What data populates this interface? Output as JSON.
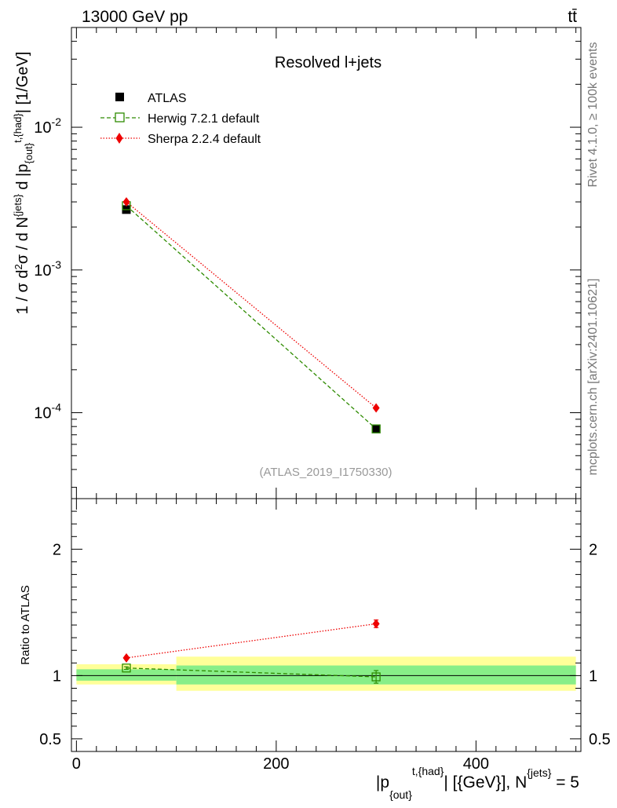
{
  "header": {
    "energy_label": "13000 GeV pp",
    "process_label": "tt̄",
    "panel_title": "Resolved l+jets",
    "analysis_id": "(ATLAS_2019_I1750330)"
  },
  "side_text": {
    "rivet": "Rivet 4.1.0, ≥ 100k events",
    "source": "mcplots.cern.ch [arXiv:2401.10621]"
  },
  "colors": {
    "data": "#000000",
    "herwig": "#2e8b00",
    "sherpa": "#ee0000",
    "band_outer": "#ffff99",
    "band_inner": "#88ee88"
  },
  "chart_data": [
    {
      "type": "scatter",
      "name": "main-panel",
      "title": "Resolved l+jets",
      "ylabel": "1 / σ d²σ / d N^{jets} d |p_{out}^{t,{had}}| [1/GeV]",
      "yscale": "log",
      "xlim": [
        -5,
        505
      ],
      "ylim": [
        2.5e-05,
        0.05
      ],
      "y_ticks": [
        {
          "value": 0.01,
          "base": "10",
          "exp": "-2"
        },
        {
          "value": 0.001,
          "base": "10",
          "exp": "-3"
        },
        {
          "value": 0.0001,
          "base": "10",
          "exp": "-4"
        }
      ],
      "legend": {
        "placement": "top-left",
        "entries": [
          "ATLAS",
          "Herwig 7.2.1 default",
          "Sherpa 2.2.4 default"
        ]
      },
      "series": [
        {
          "name": "ATLAS",
          "marker": "square-filled",
          "x": [
            50,
            300
          ],
          "y": [
            0.00265,
            7.7e-05
          ]
        },
        {
          "name": "Herwig 7.2.1 default",
          "marker": "square-open",
          "line": "dashed",
          "x": [
            50,
            300
          ],
          "y": [
            0.00282,
            7.7e-05
          ]
        },
        {
          "name": "Sherpa 2.2.4 default",
          "marker": "diamond",
          "line": "dotted",
          "x": [
            50,
            300
          ],
          "y": [
            0.003,
            0.000108
          ]
        }
      ]
    },
    {
      "type": "scatter",
      "name": "ratio-panel",
      "ylabel": "Ratio to ATLAS",
      "xlabel": "|p_{out}^{t,{had}}| [{GeV}], N^{jets} = 5",
      "xlim": [
        -5,
        505
      ],
      "ylim": [
        0.4,
        2.4
      ],
      "y_ticks": [
        {
          "value": 2,
          "label": "2"
        },
        {
          "value": 1,
          "label": "1"
        },
        {
          "value": 0.5,
          "label": "0.5"
        }
      ],
      "x_ticks": [
        {
          "value": 0,
          "label": "0"
        },
        {
          "value": 200,
          "label": "200"
        },
        {
          "value": 400,
          "label": "400"
        }
      ],
      "bands": [
        {
          "x0": 0,
          "x1": 100,
          "outer": [
            0.93,
            1.09
          ],
          "inner": [
            0.96,
            1.05
          ]
        },
        {
          "x0": 100,
          "x1": 500,
          "outer": [
            0.88,
            1.15
          ],
          "inner": [
            0.93,
            1.08
          ]
        }
      ],
      "series": [
        {
          "name": "Herwig 7.2.1 default",
          "x": [
            50,
            300
          ],
          "y": [
            1.06,
            0.99
          ],
          "yerr": [
            0.01,
            0.05
          ]
        },
        {
          "name": "Sherpa 2.2.4 default",
          "x": [
            50,
            300
          ],
          "y": [
            1.14,
            1.41
          ],
          "yerr": [
            0.01,
            0.03
          ]
        }
      ]
    }
  ]
}
